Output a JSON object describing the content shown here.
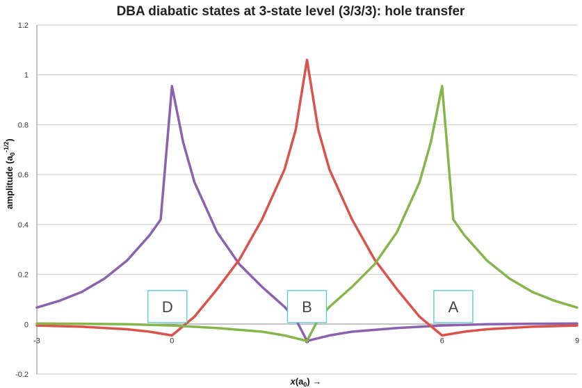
{
  "chart_data": {
    "type": "line",
    "title": "DBA diabatic states at 3-state level (3/3/3): hole transfer",
    "xlabel": "x(a0) →",
    "ylabel": "amplitude (a0^-1/2)",
    "xlim": [
      -3,
      9
    ],
    "ylim": [
      -0.2,
      1.2
    ],
    "x_ticks": [
      "-3",
      "0",
      "3",
      "6",
      "9"
    ],
    "y_ticks": [
      "-0.2",
      "0",
      "0.2",
      "0.4",
      "0.6",
      "0.8",
      "1",
      "1.2"
    ],
    "grid": true,
    "legend": "none",
    "series": [
      {
        "color": "#8a62ad",
        "x": [
          -3,
          -2.5,
          -2,
          -1.5,
          -1,
          -0.5,
          -0.25,
          0,
          0.25,
          0.5,
          1,
          1.5,
          2,
          2.5,
          2.75,
          3,
          3.5,
          4,
          5,
          6,
          7,
          8,
          9
        ],
        "y": [
          0.067,
          0.094,
          0.13,
          0.183,
          0.255,
          0.356,
          0.42,
          0.955,
          0.73,
          0.57,
          0.37,
          0.24,
          0.15,
          0.07,
          0.02,
          -0.067,
          -0.045,
          -0.03,
          -0.015,
          -0.005,
          0.0,
          0.002,
          0.003
        ]
      },
      {
        "color": "#d9534a",
        "x": [
          -3,
          -2,
          -1,
          -0.5,
          0,
          0.5,
          1,
          1.5,
          2,
          2.5,
          2.75,
          3,
          3.25,
          3.5,
          4,
          4.5,
          5,
          5.5,
          6,
          6.5,
          7,
          8,
          9
        ],
        "y": [
          -0.005,
          -0.01,
          -0.02,
          -0.03,
          -0.045,
          0.03,
          0.14,
          0.26,
          0.42,
          0.62,
          0.78,
          1.06,
          0.78,
          0.62,
          0.42,
          0.26,
          0.14,
          0.03,
          -0.045,
          -0.03,
          -0.02,
          -0.01,
          -0.005
        ]
      },
      {
        "color": "#86b54a",
        "x": [
          -3,
          -2,
          -1,
          0,
          1,
          2,
          2.5,
          3,
          3.25,
          3.5,
          4,
          4.5,
          5,
          5.5,
          5.75,
          6,
          6.25,
          6.5,
          7,
          7.5,
          8,
          8.5,
          9
        ],
        "y": [
          0.003,
          0.002,
          0.0,
          -0.005,
          -0.015,
          -0.03,
          -0.045,
          -0.067,
          0.02,
          0.07,
          0.15,
          0.24,
          0.37,
          0.57,
          0.73,
          0.955,
          0.42,
          0.356,
          0.255,
          0.183,
          0.13,
          0.094,
          0.067
        ]
      }
    ],
    "site_labels": [
      {
        "text": "D",
        "x": -0.1
      },
      {
        "text": "B",
        "x": 3.0
      },
      {
        "text": "A",
        "x": 6.25
      }
    ]
  }
}
